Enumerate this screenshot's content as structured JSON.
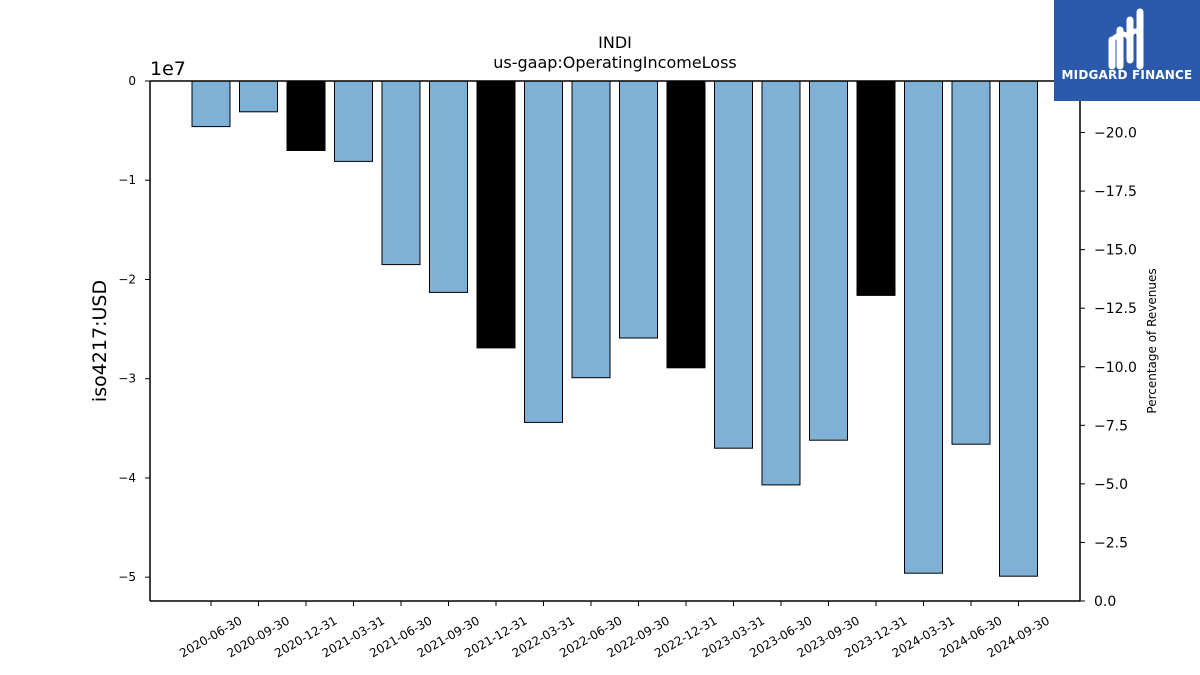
{
  "logo": {
    "text": "MIDGARD FINANCE",
    "bg_color": "#2b5aad"
  },
  "chart_data": {
    "type": "bar",
    "title": "INDI",
    "subtitle": "us-gaap:OperatingIncomeLoss",
    "ylabel": "iso4217:USD",
    "y_offset_label": "1e7",
    "y2label": "Percentage of Revenues",
    "categories": [
      "2020-06-30",
      "2020-09-30",
      "2020-12-31",
      "2021-03-31",
      "2021-06-30",
      "2021-09-30",
      "2021-12-31",
      "2022-03-31",
      "2022-06-30",
      "2022-09-30",
      "2022-12-31",
      "2023-03-31",
      "2023-06-30",
      "2023-09-30",
      "2023-12-31",
      "2024-03-31",
      "2024-06-30",
      "2024-09-30"
    ],
    "values": [
      -4600000,
      -3100000,
      -7000000,
      -8100000,
      -18500000,
      -21300000,
      -26900000,
      -34400000,
      -29900000,
      -25900000,
      -28900000,
      -37000000,
      -40700000,
      -36200000,
      -21600000,
      -49600000,
      -36600000,
      -49900000
    ],
    "annual": [
      false,
      false,
      true,
      false,
      false,
      false,
      true,
      false,
      false,
      false,
      true,
      false,
      false,
      false,
      true,
      false,
      false,
      false
    ],
    "ylim": [
      -52400000,
      0
    ],
    "yticks": [
      0,
      -10000000,
      -20000000,
      -30000000,
      -40000000,
      -50000000
    ],
    "ytick_labels": [
      "0",
      "−1",
      "−2",
      "−3",
      "−4",
      "−5"
    ],
    "y2lim": [
      0,
      -22.2
    ],
    "y2ticks": [
      -20,
      -17.5,
      -15,
      -12.5,
      -10,
      -7.5,
      -5,
      -2.5,
      0
    ],
    "y2tick_labels": [
      "−20.0",
      "−17.5",
      "−15.0",
      "−12.5",
      "−10.0",
      "−7.5",
      "−5.0",
      "−2.5",
      "0.0"
    ],
    "colors": {
      "quarterly": "#7fb0d5",
      "annual": "#000000",
      "edge": "#000000"
    },
    "grid": false
  }
}
